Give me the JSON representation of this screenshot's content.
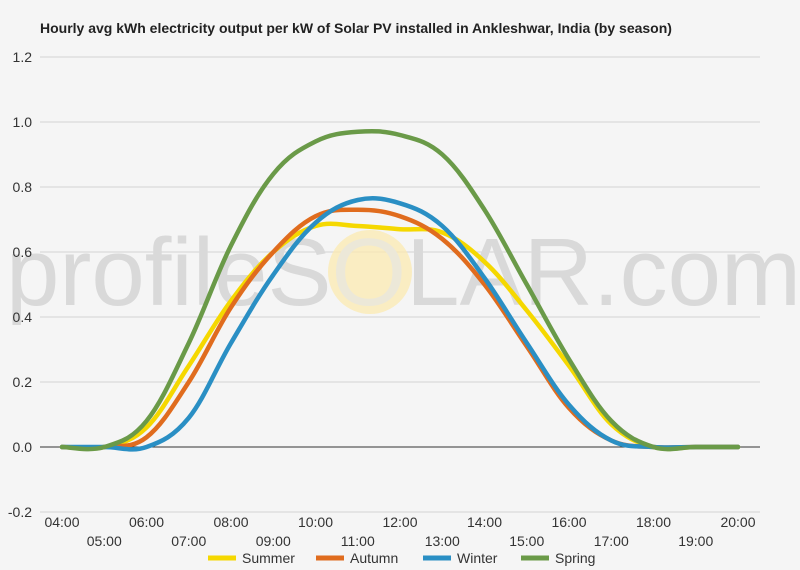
{
  "chart_data": {
    "type": "line",
    "title": "Hourly avg kWh electricity output per kW of Solar PV installed in Ankleshwar, India (by season)",
    "xlabel": "",
    "ylabel": "",
    "watermark": [
      "profile",
      "S",
      "O",
      "LAR.com"
    ],
    "categories": [
      "04:00",
      "05:00",
      "06:00",
      "07:00",
      "08:00",
      "09:00",
      "10:00",
      "11:00",
      "12:00",
      "13:00",
      "14:00",
      "15:00",
      "16:00",
      "17:00",
      "18:00",
      "19:00",
      "20:00"
    ],
    "ylim": [
      -0.2,
      1.2
    ],
    "yticks": [
      "1.2",
      "1.0",
      "0.8",
      "0.6",
      "0.4",
      "0.2",
      "0.0",
      "-0.2"
    ],
    "ytick_values": [
      1.2,
      1.0,
      0.8,
      0.6,
      0.4,
      0.2,
      0.0,
      -0.2
    ],
    "grid": true,
    "legend_position": "bottom",
    "series": [
      {
        "name": "Summer",
        "color": "#f5d800",
        "values": [
          0.0,
          0.0,
          0.06,
          0.25,
          0.45,
          0.6,
          0.68,
          0.68,
          0.67,
          0.66,
          0.57,
          0.42,
          0.25,
          0.07,
          0.0,
          0.0,
          0.0
        ]
      },
      {
        "name": "Autumn",
        "color": "#e06c1e",
        "values": [
          0.0,
          0.0,
          0.03,
          0.2,
          0.43,
          0.6,
          0.71,
          0.73,
          0.71,
          0.64,
          0.5,
          0.31,
          0.12,
          0.02,
          0.0,
          0.0,
          0.0
        ]
      },
      {
        "name": "Winter",
        "color": "#2a8fc4",
        "values": [
          0.0,
          0.0,
          0.0,
          0.09,
          0.32,
          0.53,
          0.69,
          0.76,
          0.75,
          0.68,
          0.52,
          0.32,
          0.13,
          0.02,
          0.0,
          0.0,
          0.0
        ]
      },
      {
        "name": "Spring",
        "color": "#6a9a48",
        "values": [
          0.0,
          0.0,
          0.08,
          0.32,
          0.62,
          0.84,
          0.94,
          0.97,
          0.96,
          0.9,
          0.73,
          0.5,
          0.27,
          0.08,
          0.0,
          0.0,
          0.0
        ]
      }
    ]
  }
}
